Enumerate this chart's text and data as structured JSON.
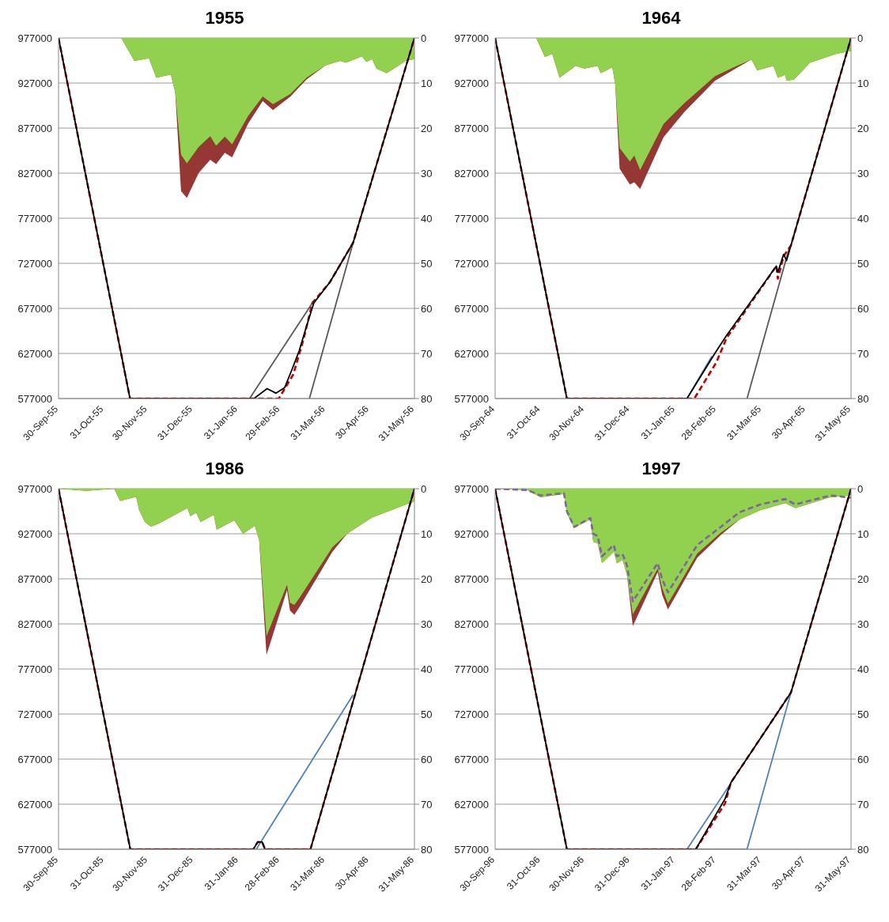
{
  "chart_data": [
    {
      "type": "line",
      "title": "1955",
      "grid": "y",
      "ylim": [
        577000,
        977000
      ],
      "yticks": [
        577000,
        627000,
        677000,
        727000,
        777000,
        827000,
        877000,
        927000,
        977000
      ],
      "y2lim": [
        80,
        0
      ],
      "y2ticks": [
        0,
        10,
        20,
        30,
        40,
        50,
        60,
        70,
        80
      ],
      "xlim": [
        "1955-09-30",
        "1956-05-31"
      ],
      "xticks": [
        {
          "value": "1955-09-30",
          "label": "30-Sep-55"
        },
        {
          "value": "1955-10-31",
          "label": "31-Oct-55"
        },
        {
          "value": "1955-11-30",
          "label": "30-Nov-55"
        },
        {
          "value": "1955-12-31",
          "label": "31-Dec-55"
        },
        {
          "value": "1956-01-31",
          "label": "31-Jan-56"
        },
        {
          "value": "1956-02-29",
          "label": "29-Feb-56"
        },
        {
          "value": "1956-03-31",
          "label": "31-Mar-56"
        },
        {
          "value": "1956-04-30",
          "label": "30-Apr-56"
        },
        {
          "value": "1956-05-31",
          "label": "31-May-56"
        }
      ],
      "series": [
        {
          "type": "area",
          "axis": "y2",
          "color": "#953735",
          "x": [
            "1955-09-30",
            "1955-11-12",
            "1955-11-21",
            "1955-12-01",
            "1955-12-06",
            "1955-12-16",
            "1955-12-19",
            "1955-12-23",
            "1955-12-27",
            "1956-01-04",
            "1956-01-12",
            "1956-01-16",
            "1956-01-22",
            "1956-01-27",
            "1956-02-07",
            "1956-02-17",
            "1956-02-24",
            "1956-03-07",
            "1956-03-18",
            "1956-03-31",
            "1956-04-10",
            "1956-04-14",
            "1956-04-25",
            "1956-04-28",
            "1956-05-02",
            "1956-05-05",
            "1956-05-12",
            "1956-05-25",
            "1956-05-31"
          ],
          "values": [
            0,
            0,
            5.1,
            4.5,
            8.8,
            8.1,
            12,
            34,
            35.5,
            30,
            27,
            28,
            25.5,
            26.5,
            19,
            14,
            16,
            13,
            9.2,
            6.1,
            5.1,
            5.5,
            4.1,
            5.3,
            4.7,
            6.8,
            7.8,
            5.1,
            4.7
          ]
        },
        {
          "type": "area",
          "axis": "y2",
          "color": "#92d050",
          "x": [
            "1955-09-30",
            "1955-11-12",
            "1955-11-21",
            "1955-12-01",
            "1955-12-06",
            "1955-12-16",
            "1955-12-19",
            "1955-12-23",
            "1955-12-27",
            "1956-01-04",
            "1956-01-12",
            "1956-01-16",
            "1956-01-22",
            "1956-01-27",
            "1956-02-07",
            "1956-02-17",
            "1956-02-24",
            "1956-03-07",
            "1956-03-18",
            "1956-03-31",
            "1956-04-10",
            "1956-04-14",
            "1956-04-25",
            "1956-04-28",
            "1956-05-02",
            "1956-05-05",
            "1956-05-12",
            "1956-05-25",
            "1956-05-31"
          ],
          "values": [
            0,
            0,
            5.1,
            4.5,
            8.8,
            8.1,
            12,
            25.9,
            27.8,
            24.2,
            21.8,
            23.9,
            21.9,
            23.6,
            17.3,
            13,
            14.7,
            12.4,
            8.8,
            6.1,
            5.1,
            5.5,
            4.1,
            5.3,
            4.7,
            6.8,
            7.8,
            5.1,
            4.7
          ]
        },
        {
          "color": "#595959",
          "x": [
            "1956-02-08",
            "1956-03-22"
          ],
          "values": [
            577000,
            683000
          ]
        },
        {
          "color": "#595959",
          "x": [
            "1956-03-20",
            "1956-04-19"
          ],
          "values": [
            577000,
            750000
          ]
        },
        {
          "color": "#c00000",
          "line_style": "dashed",
          "x": [
            "1955-09-30",
            "1955-11-18",
            "1956-02-28",
            "1956-03-09",
            "1956-03-16",
            "1956-03-22",
            "1956-04-03",
            "1956-04-19",
            "1956-05-31"
          ],
          "values": [
            977000,
            577000,
            577000,
            604000,
            643000,
            683000,
            706000,
            750000,
            977000
          ]
        },
        {
          "color": "#000000",
          "x": [
            "1955-09-30",
            "1955-11-18",
            "1956-02-11",
            "1956-02-20",
            "1956-02-26",
            "1956-03-03",
            "1956-03-08",
            "1956-03-13",
            "1956-03-18",
            "1956-03-23",
            "1956-04-03",
            "1956-04-19",
            "1956-05-31"
          ],
          "values": [
            977000,
            577000,
            577000,
            588000,
            583000,
            589000,
            609000,
            630000,
            657000,
            683000,
            706000,
            750000,
            977000
          ]
        }
      ]
    },
    {
      "type": "line",
      "title": "1964",
      "grid": "y",
      "ylim": [
        577000,
        977000
      ],
      "yticks": [
        577000,
        627000,
        677000,
        727000,
        777000,
        827000,
        877000,
        927000,
        977000
      ],
      "y2lim": [
        80,
        0
      ],
      "y2ticks": [
        0,
        10,
        20,
        30,
        40,
        50,
        60,
        70,
        80
      ],
      "xlim": [
        "1964-09-30",
        "1965-05-31"
      ],
      "xticks": [
        {
          "value": "1964-09-30",
          "label": "30-Sep-64"
        },
        {
          "value": "1964-10-31",
          "label": "31-Oct-64"
        },
        {
          "value": "1964-11-30",
          "label": "30-Nov-64"
        },
        {
          "value": "1964-12-31",
          "label": "31-Dec-64"
        },
        {
          "value": "1965-01-31",
          "label": "31-Jan-65"
        },
        {
          "value": "1965-02-28",
          "label": "28-Feb-65"
        },
        {
          "value": "1965-03-31",
          "label": "31-Mar-65"
        },
        {
          "value": "1965-04-30",
          "label": "30-Apr-65"
        },
        {
          "value": "1965-05-31",
          "label": "31-May-65"
        }
      ],
      "series": [
        {
          "type": "area",
          "axis": "y2",
          "color": "#953735",
          "x": [
            "1964-09-30",
            "1964-10-28",
            "1964-11-03",
            "1964-11-08",
            "1964-11-13",
            "1964-11-24",
            "1964-11-30",
            "1964-12-09",
            "1964-12-11",
            "1964-12-19",
            "1964-12-21",
            "1964-12-24",
            "1964-12-31",
            "1965-01-03",
            "1965-01-07",
            "1965-01-23",
            "1965-02-06",
            "1965-02-27",
            "1965-03-12",
            "1965-03-24",
            "1965-03-28",
            "1965-04-08",
            "1965-04-11",
            "1965-04-16",
            "1965-04-17",
            "1965-04-22",
            "1965-05-03",
            "1965-05-21",
            "1965-05-31"
          ],
          "values": [
            0,
            0,
            4.2,
            3.5,
            8.8,
            6.2,
            6.8,
            6.2,
            7.8,
            6.5,
            10.2,
            29,
            32.5,
            32,
            33.5,
            22,
            16.5,
            9.5,
            7,
            4.8,
            7.2,
            6.2,
            8.8,
            8.2,
            9.5,
            9.2,
            5.5,
            3.5,
            2.9
          ]
        },
        {
          "type": "area",
          "axis": "y2",
          "color": "#92d050",
          "x": [
            "1964-09-30",
            "1964-10-28",
            "1964-11-03",
            "1964-11-08",
            "1964-11-13",
            "1964-11-24",
            "1964-11-30",
            "1964-12-09",
            "1964-12-11",
            "1964-12-19",
            "1964-12-21",
            "1964-12-24",
            "1964-12-31",
            "1965-01-03",
            "1965-01-07",
            "1965-01-23",
            "1965-02-06",
            "1965-02-27",
            "1965-03-12",
            "1965-03-24",
            "1965-03-28",
            "1965-04-08",
            "1965-04-11",
            "1965-04-16",
            "1965-04-17",
            "1965-04-22",
            "1965-05-03",
            "1965-05-21",
            "1965-05-31"
          ],
          "values": [
            0,
            0,
            4.2,
            3.5,
            8.8,
            6.2,
            6.8,
            6.2,
            7.8,
            6.5,
            10.2,
            24.4,
            27.4,
            26.1,
            29.3,
            19.1,
            14.5,
            8.5,
            6.5,
            4.8,
            7.2,
            6.2,
            8.8,
            8.2,
            9.5,
            9.2,
            5.5,
            3.5,
            2.9
          ]
        },
        {
          "color": "#4f81bd",
          "x": [
            "1965-02-08",
            "1965-02-25"
          ],
          "values": [
            577000,
            624000
          ]
        },
        {
          "color": "#595959",
          "x": [
            "1965-03-21",
            "1965-04-19"
          ],
          "values": [
            577000,
            745000
          ]
        },
        {
          "color": "#c00000",
          "line_style": "dashed",
          "x": [
            "1964-09-30",
            "1964-11-18",
            "1965-02-13",
            "1965-02-28",
            "1965-03-07",
            "1965-04-10",
            "1965-04-11",
            "1965-04-15",
            "1965-04-20",
            "1965-05-31"
          ],
          "values": [
            977000,
            577000,
            577000,
            617000,
            644000,
            724000,
            710000,
            735000,
            747000,
            977000
          ]
        },
        {
          "color": "#000000",
          "x": [
            "1964-09-30",
            "1964-11-18",
            "1965-02-08",
            "1965-02-27",
            "1965-03-07",
            "1965-04-10",
            "1965-04-11",
            "1965-04-15",
            "1965-04-17",
            "1965-04-20",
            "1965-05-31"
          ],
          "values": [
            977000,
            577000,
            577000,
            627000,
            647000,
            724000,
            717000,
            737000,
            730000,
            747000,
            977000
          ]
        }
      ]
    },
    {
      "type": "line",
      "title": "1986",
      "grid": "y",
      "ylim": [
        577000,
        977000
      ],
      "yticks": [
        577000,
        627000,
        677000,
        727000,
        777000,
        827000,
        877000,
        927000,
        977000
      ],
      "y2lim": [
        80,
        0
      ],
      "y2ticks": [
        0,
        10,
        20,
        30,
        40,
        50,
        60,
        70,
        80
      ],
      "xlim": [
        "1985-09-30",
        "1986-05-31"
      ],
      "xticks": [
        {
          "value": "1985-09-30",
          "label": "30-Sep-85"
        },
        {
          "value": "1985-10-31",
          "label": "31-Oct-85"
        },
        {
          "value": "1985-11-30",
          "label": "30-Nov-85"
        },
        {
          "value": "1985-12-31",
          "label": "31-Dec-85"
        },
        {
          "value": "1986-01-31",
          "label": "31-Jan-86"
        },
        {
          "value": "1986-02-28",
          "label": "28-Feb-86"
        },
        {
          "value": "1986-03-31",
          "label": "31-Mar-86"
        },
        {
          "value": "1986-04-30",
          "label": "30-Apr-86"
        },
        {
          "value": "1986-05-31",
          "label": "31-May-86"
        }
      ],
      "series": [
        {
          "type": "area",
          "axis": "y2",
          "color": "#953735",
          "x": [
            "1985-09-30",
            "1985-10-19",
            "1985-11-07",
            "1985-11-11",
            "1985-11-22",
            "1985-11-24",
            "1985-11-28",
            "1985-12-02",
            "1985-12-07",
            "1985-12-27",
            "1985-12-29",
            "1986-01-02",
            "1986-01-05",
            "1986-01-14",
            "1986-01-16",
            "1986-01-28",
            "1986-02-03",
            "1986-02-11",
            "1986-02-14",
            "1986-02-19",
            "1986-03-05",
            "1986-03-07",
            "1986-03-10",
            "1986-03-14",
            "1986-04-05",
            "1986-04-15",
            "1986-05-02",
            "1986-05-31"
          ],
          "values": [
            0,
            0.5,
            0,
            2.7,
            1.8,
            4.7,
            7.4,
            8.4,
            7.8,
            4.3,
            6.1,
            5.3,
            7.4,
            5.8,
            9.1,
            7,
            10,
            8.2,
            11.4,
            36.9,
            22.5,
            27,
            28,
            26,
            14,
            10,
            6.4,
            2.8
          ]
        },
        {
          "type": "area",
          "axis": "y2",
          "color": "#92d050",
          "x": [
            "1985-09-30",
            "1985-10-19",
            "1985-11-07",
            "1985-11-11",
            "1985-11-22",
            "1985-11-24",
            "1985-11-28",
            "1985-12-02",
            "1985-12-07",
            "1985-12-27",
            "1985-12-29",
            "1986-01-02",
            "1986-01-05",
            "1986-01-14",
            "1986-01-16",
            "1986-01-28",
            "1986-02-03",
            "1986-02-11",
            "1986-02-14",
            "1986-02-19",
            "1986-03-05",
            "1986-03-07",
            "1986-03-10",
            "1986-03-14",
            "1986-04-05",
            "1986-04-15",
            "1986-05-02",
            "1986-05-31"
          ],
          "values": [
            0,
            0.5,
            0,
            2.7,
            1.8,
            4.7,
            7.4,
            8.4,
            7.8,
            4.3,
            6.1,
            5.3,
            7.4,
            5.8,
            9.1,
            7,
            10,
            8.2,
            11.4,
            32.7,
            21.3,
            25.3,
            25.8,
            24,
            13,
            10,
            6.4,
            2.8
          ]
        },
        {
          "color": "#4f81bd",
          "x": [
            "1986-02-12",
            "1986-04-19"
          ],
          "values": [
            577000,
            748000
          ]
        },
        {
          "color": "#c00000",
          "line_style": "dashed",
          "x": [
            "1985-09-30",
            "1985-11-18",
            "1986-02-10",
            "1986-02-13",
            "1986-02-16",
            "1986-02-18",
            "1986-03-21",
            "1986-05-31"
          ],
          "values": [
            977000,
            577000,
            577000,
            585000,
            585000,
            577000,
            577000,
            977000
          ]
        },
        {
          "color": "#000000",
          "x": [
            "1985-09-30",
            "1985-11-18",
            "1986-02-10",
            "1986-02-13",
            "1986-02-16",
            "1986-02-18",
            "1986-03-21",
            "1986-05-31"
          ],
          "values": [
            977000,
            577000,
            577000,
            585000,
            585000,
            577000,
            577000,
            977000
          ]
        }
      ]
    },
    {
      "type": "line",
      "title": "1997",
      "grid": "y",
      "ylim": [
        577000,
        977000
      ],
      "yticks": [
        577000,
        627000,
        677000,
        727000,
        777000,
        827000,
        877000,
        927000,
        977000
      ],
      "y2lim": [
        80,
        0
      ],
      "y2ticks": [
        0,
        10,
        20,
        30,
        40,
        50,
        60,
        70,
        80
      ],
      "xlim": [
        "1996-09-30",
        "1997-05-31"
      ],
      "xticks": [
        {
          "value": "1996-09-30",
          "label": "30-Sep-96"
        },
        {
          "value": "1996-10-31",
          "label": "31-Oct-96"
        },
        {
          "value": "1996-11-30",
          "label": "30-Nov-96"
        },
        {
          "value": "1996-12-31",
          "label": "31-Dec-96"
        },
        {
          "value": "1997-01-31",
          "label": "31-Jan-97"
        },
        {
          "value": "1997-02-28",
          "label": "28-Feb-97"
        },
        {
          "value": "1997-03-31",
          "label": "31-Mar-97"
        },
        {
          "value": "1997-04-30",
          "label": "30-Apr-97"
        },
        {
          "value": "1997-05-31",
          "label": "31-May-97"
        }
      ],
      "series": [
        {
          "type": "area",
          "axis": "y2",
          "color": "#953735",
          "x": [
            "1996-09-30",
            "1996-10-22",
            "1996-10-31",
            "1996-11-16",
            "1996-11-18",
            "1996-11-23",
            "1996-12-04",
            "1996-12-06",
            "1996-12-09",
            "1996-12-12",
            "1996-12-20",
            "1996-12-22",
            "1996-12-26",
            "1996-12-29",
            "1997-01-02",
            "1997-01-19",
            "1997-01-22",
            "1997-01-26",
            "1997-02-15",
            "1997-03-03",
            "1997-03-16",
            "1997-03-30",
            "1997-04-16",
            "1997-04-23",
            "1997-05-17",
            "1997-05-31"
          ],
          "values": [
            0,
            0.3,
            1.9,
            1.2,
            5.5,
            8.7,
            6.8,
            11.8,
            12.1,
            16.6,
            null,
            16.6,
            15.8,
            19.1,
            30.5,
            18.5,
            23.5,
            26.8,
            15.3,
            10.3,
            6.8,
            4.8,
            3.2,
            4.3,
            1.9,
            1.5
          ]
        },
        {
          "type": "area",
          "axis": "y2",
          "color": "#92d050",
          "x": [
            "1996-09-30",
            "1996-10-22",
            "1996-10-31",
            "1996-11-16",
            "1996-11-18",
            "1996-11-23",
            "1996-12-04",
            "1996-12-06",
            "1996-12-09",
            "1996-12-12",
            "1996-12-20",
            "1996-12-22",
            "1996-12-26",
            "1996-12-29",
            "1997-01-02",
            "1997-01-19",
            "1997-01-22",
            "1997-01-26",
            "1997-02-15",
            "1997-03-03",
            "1997-03-16",
            "1997-03-30",
            "1997-04-16",
            "1997-04-23",
            "1997-05-17",
            "1997-05-31"
          ],
          "values": [
            0,
            0.3,
            1.9,
            1.2,
            5.5,
            8.7,
            6.8,
            11.8,
            12.1,
            16.6,
            14.1,
            16.6,
            15.8,
            19.1,
            27.9,
            17.7,
            22,
            25.5,
            14.4,
            9.8,
            6.8,
            4.8,
            3.2,
            4.3,
            1.9,
            1.5
          ]
        },
        {
          "type": "line",
          "axis": "y2",
          "color": "#8064a2",
          "line_style": "dashed",
          "x": [
            "1996-09-30",
            "1996-10-22",
            "1996-10-31",
            "1996-11-16",
            "1996-11-18",
            "1996-11-23",
            "1996-12-04",
            "1996-12-06",
            "1996-12-09",
            "1996-12-12",
            "1996-12-20",
            "1996-12-22",
            "1996-12-26",
            "1996-12-29",
            "1997-01-02",
            "1997-01-19",
            "1997-01-22",
            "1997-01-26",
            "1997-02-15",
            "1997-03-03",
            "1997-03-16",
            "1997-03-30",
            "1997-04-16",
            "1997-04-23",
            "1997-05-17",
            "1997-05-31"
          ],
          "values": [
            0,
            0.3,
            1.5,
            1,
            5,
            8.5,
            6.5,
            10,
            10.5,
            15,
            12.5,
            15,
            14.5,
            17,
            25,
            16.5,
            20,
            23,
            12.5,
            8.5,
            5.2,
            3.5,
            2.3,
            3.5,
            1.5,
            2
          ]
        },
        {
          "color": "#4f81bd",
          "x": [
            "1997-02-08",
            "1997-03-09"
          ],
          "values": [
            577000,
            648000
          ]
        },
        {
          "color": "#4f81bd",
          "x": [
            "1997-02-14",
            "1997-03-21",
            "1997-04-20"
          ],
          "values": [
            577000,
            577000,
            751000
          ]
        },
        {
          "color": "#c00000",
          "line_style": "dashed",
          "x": [
            "1996-09-30",
            "1996-11-18",
            "1997-02-14",
            "1997-03-06",
            "1997-03-10",
            "1997-04-20",
            "1997-05-31"
          ],
          "values": [
            977000,
            577000,
            577000,
            628000,
            651000,
            751000,
            977000
          ]
        },
        {
          "color": "#000000",
          "x": [
            "1996-09-30",
            "1996-11-18",
            "1997-02-14",
            "1997-03-06",
            "1997-03-10",
            "1997-04-20",
            "1997-05-31"
          ],
          "values": [
            977000,
            577000,
            577000,
            633000,
            651000,
            751000,
            977000
          ]
        }
      ]
    }
  ]
}
